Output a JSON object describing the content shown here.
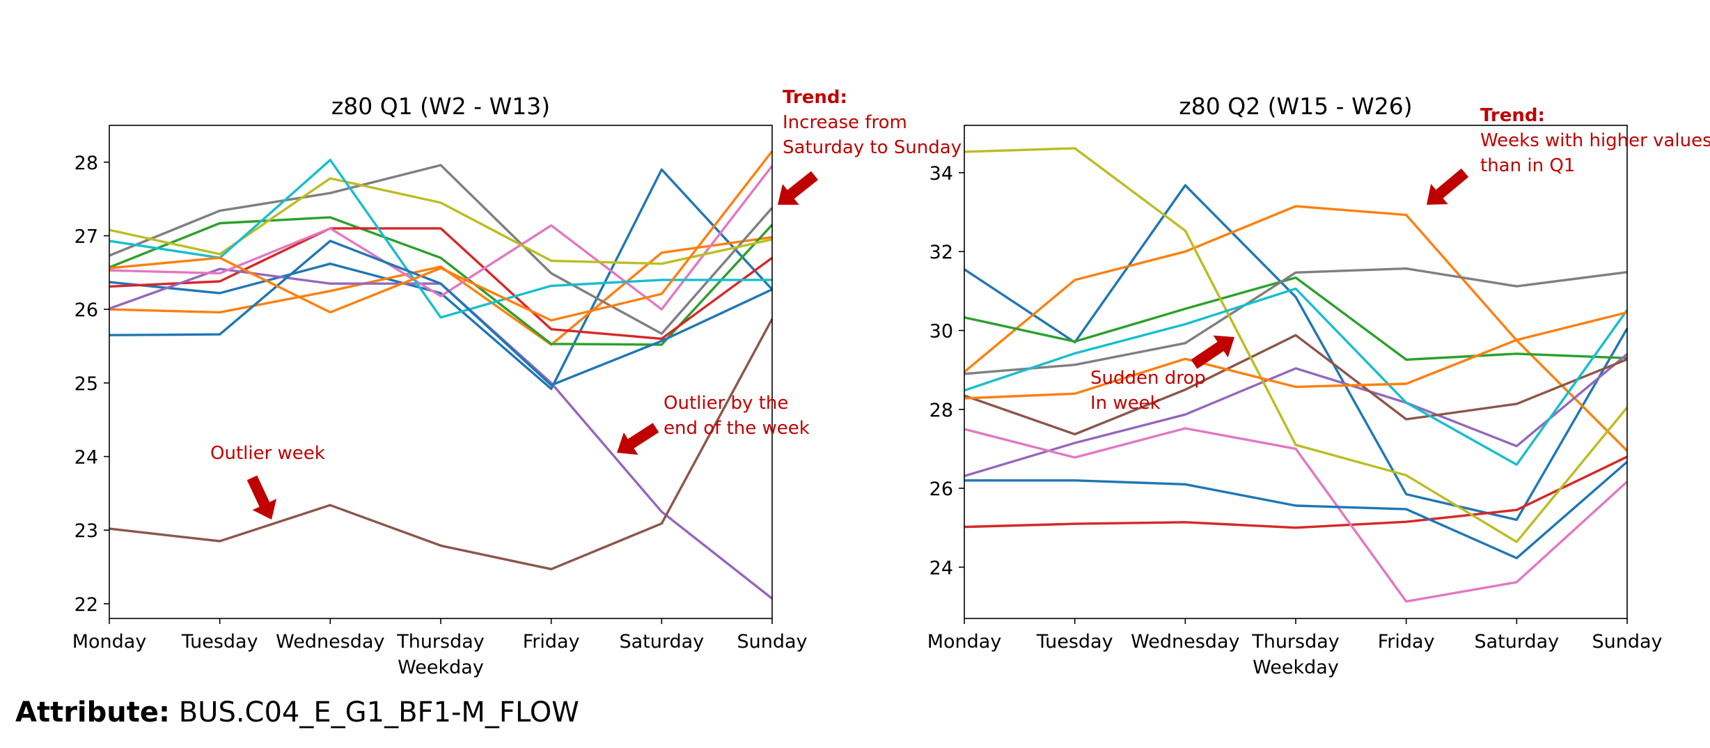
{
  "attribute": {
    "label": "Attribute:",
    "value": "BUS.C04_E_G1_BF1-M_FLOW"
  },
  "chart_data": [
    {
      "type": "line",
      "title": "z80 Q1 (W2 - W13)",
      "xlabel": "Weekday",
      "ylabel": "",
      "categories": [
        "Monday",
        "Tuesday",
        "Wednesday",
        "Thursday",
        "Friday",
        "Saturday",
        "Sunday"
      ],
      "ylim": [
        21.8,
        28.5
      ],
      "yticks": [
        22,
        23,
        24,
        25,
        26,
        27,
        28
      ],
      "grid": false,
      "series": [
        {
          "color": "#1f77b4",
          "values": [
            26.37,
            26.22,
            26.62,
            26.22,
            24.92,
            27.9,
            26.27
          ]
        },
        {
          "color": "#ff7f0e",
          "values": [
            26.0,
            25.96,
            26.25,
            26.58,
            25.52,
            26.77,
            26.98
          ]
        },
        {
          "color": "#2ca02c",
          "values": [
            26.57,
            27.17,
            27.25,
            26.7,
            25.53,
            25.52,
            27.15
          ]
        },
        {
          "color": "#d62728",
          "values": [
            26.31,
            26.38,
            27.1,
            27.1,
            25.73,
            25.6,
            26.7
          ]
        },
        {
          "color": "#9467bd",
          "values": [
            26.01,
            26.55,
            26.35,
            26.35,
            25.0,
            23.25,
            22.07
          ]
        },
        {
          "color": "#8c564b",
          "values": [
            23.02,
            22.85,
            23.34,
            22.79,
            22.47,
            23.09,
            25.87
          ]
        },
        {
          "color": "#e377c2",
          "values": [
            26.53,
            26.49,
            27.1,
            26.18,
            27.14,
            26.0,
            27.95
          ]
        },
        {
          "color": "#7f7f7f",
          "values": [
            26.73,
            27.34,
            27.58,
            27.96,
            26.49,
            25.67,
            27.38
          ]
        },
        {
          "color": "#bcbd22",
          "values": [
            27.08,
            26.75,
            27.78,
            27.45,
            26.66,
            26.62,
            26.95
          ]
        },
        {
          "color": "#17becf",
          "values": [
            26.93,
            26.7,
            28.03,
            25.89,
            26.32,
            26.4,
            26.4
          ]
        },
        {
          "color": "#1f77b4",
          "values": [
            25.65,
            25.66,
            26.93,
            26.35,
            24.97,
            25.57,
            26.27
          ]
        },
        {
          "color": "#ff7f0e",
          "values": [
            26.56,
            26.7,
            25.96,
            26.56,
            25.85,
            26.21,
            28.15
          ]
        }
      ],
      "annotations": [
        {
          "bold": "Trend:",
          "lines": [
            "Increase from",
            "Saturday to Sunday"
          ],
          "color": "#c00000"
        },
        {
          "lines": [
            "Outlier by the",
            "end of the week"
          ],
          "color": "#c00000"
        },
        {
          "lines": [
            "Outlier week"
          ],
          "color": "#c00000"
        }
      ]
    },
    {
      "type": "line",
      "title": "z80 Q2 (W15 - W26)",
      "xlabel": "Weekday",
      "ylabel": "",
      "categories": [
        "Monday",
        "Tuesday",
        "Wednesday",
        "Thursday",
        "Friday",
        "Saturday",
        "Sunday"
      ],
      "ylim": [
        22.7,
        35.2
      ],
      "yticks": [
        24,
        26,
        28,
        30,
        32,
        34
      ],
      "grid": false,
      "series": [
        {
          "color": "#1f77b4",
          "values": [
            31.55,
            29.7,
            33.68,
            30.85,
            25.85,
            25.2,
            30.05
          ]
        },
        {
          "color": "#ff7f0e",
          "values": [
            28.95,
            31.28,
            32.0,
            33.15,
            32.93,
            29.75,
            26.95
          ]
        },
        {
          "color": "#2ca02c",
          "values": [
            30.33,
            29.72,
            30.55,
            31.34,
            29.26,
            29.41,
            29.3
          ]
        },
        {
          "color": "#d62728",
          "values": [
            25.02,
            25.1,
            25.14,
            25.0,
            25.15,
            25.45,
            26.8
          ]
        },
        {
          "color": "#9467bd",
          "values": [
            26.31,
            27.15,
            27.87,
            29.04,
            28.17,
            27.07,
            29.4
          ]
        },
        {
          "color": "#8c564b",
          "values": [
            28.35,
            27.37,
            28.5,
            29.88,
            27.75,
            28.14,
            29.27
          ]
        },
        {
          "color": "#e377c2",
          "values": [
            27.5,
            26.78,
            27.52,
            27.0,
            23.13,
            23.62,
            26.17
          ]
        },
        {
          "color": "#7f7f7f",
          "values": [
            28.9,
            29.13,
            29.68,
            31.47,
            31.57,
            31.12,
            31.48
          ]
        },
        {
          "color": "#bcbd22",
          "values": [
            34.53,
            34.62,
            32.53,
            27.1,
            26.33,
            24.64,
            28.05
          ]
        },
        {
          "color": "#17becf",
          "values": [
            28.48,
            29.42,
            30.16,
            31.06,
            28.17,
            26.6,
            30.52
          ]
        },
        {
          "color": "#1f77b4",
          "values": [
            26.2,
            26.2,
            26.1,
            25.56,
            25.47,
            24.23,
            26.67
          ]
        },
        {
          "color": "#ff7f0e",
          "values": [
            28.28,
            28.4,
            29.28,
            28.57,
            28.65,
            29.76,
            30.46
          ]
        }
      ],
      "annotations": [
        {
          "bold": "Trend:",
          "lines": [
            "Weeks with higher values",
            "than in Q1"
          ],
          "color": "#c00000"
        },
        {
          "lines": [
            "Sudden drop",
            "In week"
          ],
          "color": "#c00000"
        }
      ]
    }
  ]
}
